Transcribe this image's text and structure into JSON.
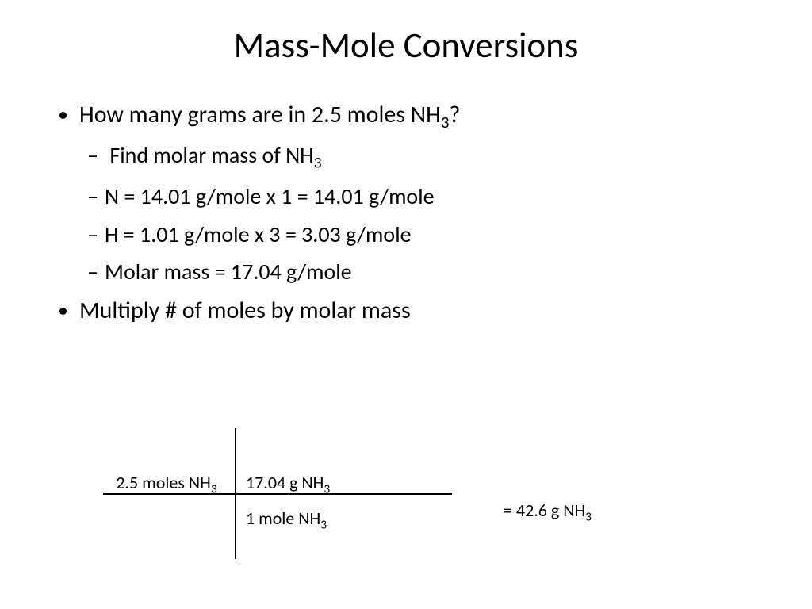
{
  "title": "Mass-Mole Conversions",
  "bullets": {
    "b1_pre": "How many grams are in 2.5 moles NH",
    "b1_sub": "3",
    "b1_post": "?",
    "s1_pre": "Find molar mass of NH",
    "s1_sub": "3",
    "s2": "N = 14.01 g/mole x 1 = 14.01 g/mole",
    "s3": "H = 1.01 g/mole x 3 = 3.03 g/mole",
    "s4": "Molar mass = 17.04 g/mole",
    "b2": "Multiply # of moles by molar mass"
  },
  "calc": {
    "tl_pre": "2.5 moles NH",
    "tl_sub": "3",
    "tr_pre": "17.04 g NH",
    "tr_sub": "3",
    "br_pre": "1 mole NH",
    "br_sub": "3",
    "result_pre": "=  42.6 g NH",
    "result_sub": "3"
  },
  "style": {
    "bg": "#ffffff",
    "text_color": "#000000",
    "title_fontsize": 45,
    "body_fontsize": 30,
    "sub_fontsize": 28,
    "calc_fontsize": 22,
    "line_color": "#000000"
  }
}
